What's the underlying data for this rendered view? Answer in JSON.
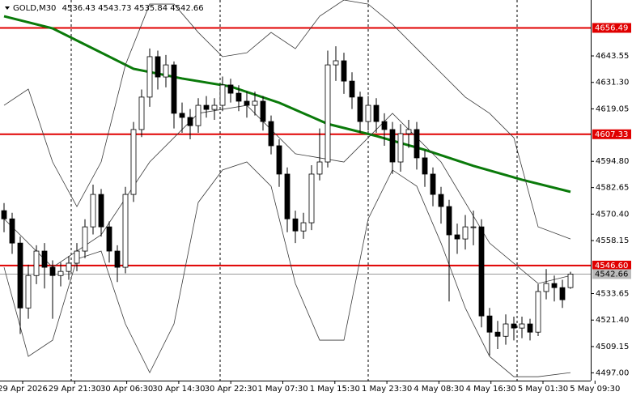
{
  "chart_data": {
    "type": "candlestick",
    "symbol": "GOLD,M30",
    "open": [
      4572.0,
      4568.2,
      4557.0,
      4527.0,
      4542.0,
      4553.3,
      4545.8,
      4542.0,
      4543.9,
      4547.7,
      4553.3,
      4564.5,
      4579.5,
      4564.5,
      4553.3,
      4545.8,
      4579.5,
      4609.5,
      4624.5,
      4643.2,
      4633.8,
      4639.4,
      4617.0,
      4615.1,
      4611.3,
      4620.7,
      4618.8,
      4620.7,
      4630.1,
      4626.3,
      4622.6,
      4620.7,
      4622.6,
      4613.2,
      4602.0,
      4588.9,
      4568.2,
      4562.6,
      4566.4,
      4588.9,
      4594.5,
      4639.4,
      4641.3,
      4631.9,
      4624.5,
      4613.2,
      4620.7,
      4613.2,
      4609.5,
      4594.5,
      4607.6,
      4609.5,
      4596.4,
      4588.9,
      4579.5,
      4573.9,
      4560.8,
      4558.9,
      4564.5,
      4564.5,
      4523.3,
      4515.8,
      4513.9,
      4519.6,
      4517.7,
      4519.6,
      4515.8,
      4534.6,
      4538.3,
      4536.4,
      4536.43
    ],
    "high": [
      4575.5,
      4571.0,
      4560.0,
      4547.0,
      4556.0,
      4557.0,
      4549.0,
      4548.0,
      4551.0,
      4557.0,
      4568.0,
      4584.0,
      4582.0,
      4567.0,
      4556.0,
      4583.0,
      4613.0,
      4628.0,
      4647.0,
      4646.0,
      4644.0,
      4641.0,
      4622.0,
      4619.0,
      4624.0,
      4625.0,
      4624.0,
      4634.0,
      4633.0,
      4630.0,
      4627.0,
      4627.0,
      4625.0,
      4616.0,
      4605.0,
      4592.0,
      4572.0,
      4571.0,
      4593.0,
      4610.0,
      4646.0,
      4648.0,
      4645.0,
      4636.0,
      4627.0,
      4625.0,
      4624.0,
      4617.0,
      4613.0,
      4612.0,
      4614.0,
      4613.0,
      4600.0,
      4592.0,
      4583.0,
      4577.0,
      4566.0,
      4570.0,
      4572.0,
      4568.0,
      4527.0,
      4521.0,
      4524.0,
      4523.0,
      4523.0,
      4522.0,
      4538.0,
      4545.0,
      4542.0,
      4540.0,
      4543.73
    ],
    "low": [
      4562.0,
      4552.0,
      4515.0,
      4522.0,
      4538.0,
      4536.0,
      4522.0,
      4537.0,
      4540.0,
      4544.0,
      4550.0,
      4561.0,
      4560.0,
      4548.0,
      4539.0,
      4543.0,
      4576.0,
      4606.0,
      4620.0,
      4628.0,
      4629.0,
      4610.0,
      4608.0,
      4605.0,
      4608.0,
      4615.0,
      4614.0,
      4618.0,
      4622.0,
      4618.0,
      4615.0,
      4616.0,
      4609.0,
      4598.0,
      4583.0,
      4562.0,
      4557.0,
      4559.0,
      4563.0,
      4586.0,
      4592.0,
      4632.0,
      4626.0,
      4619.0,
      4608.0,
      4609.0,
      4608.0,
      4602.0,
      4589.0,
      4590.0,
      4601.0,
      4591.0,
      4583.0,
      4574.0,
      4566.0,
      4530.0,
      4552.0,
      4554.0,
      4556.0,
      4518.0,
      4505.0,
      4508.0,
      4510.0,
      4512.0,
      4513.0,
      4512.0,
      4514.0,
      4531.0,
      4530.0,
      4527.0,
      4535.84
    ],
    "close": [
      4568.2,
      4557.0,
      4527.0,
      4542.0,
      4553.3,
      4545.8,
      4542.0,
      4543.9,
      4547.7,
      4553.3,
      4564.5,
      4579.5,
      4564.5,
      4553.3,
      4545.8,
      4579.5,
      4609.5,
      4624.5,
      4643.2,
      4633.8,
      4639.4,
      4617.0,
      4615.1,
      4611.3,
      4620.7,
      4618.8,
      4620.7,
      4630.1,
      4626.3,
      4622.6,
      4620.7,
      4622.6,
      4613.2,
      4602.0,
      4588.9,
      4568.2,
      4562.6,
      4566.4,
      4588.9,
      4594.5,
      4639.4,
      4641.3,
      4631.9,
      4624.5,
      4613.2,
      4620.7,
      4613.2,
      4609.5,
      4594.5,
      4607.6,
      4609.5,
      4596.4,
      4588.9,
      4579.5,
      4573.9,
      4560.8,
      4558.9,
      4564.5,
      4564.5,
      4523.3,
      4515.8,
      4513.9,
      4519.6,
      4517.7,
      4519.6,
      4515.8,
      4534.6,
      4538.3,
      4536.4,
      4530.8,
      4542.66
    ],
    "lines": [
      {
        "color": "#0a7a0a",
        "width": 3,
        "x": [
          0,
          6,
          10,
          16,
          22,
          28,
          34,
          40,
          46,
          52,
          58,
          64,
          70
        ],
        "values": [
          4661.9,
          4656.3,
          4648.8,
          4637.6,
          4633.1,
          4629.4,
          4621.9,
          4612.1,
          4606.5,
          4600.1,
          4592.7,
          4586.3,
          4580.7
        ]
      },
      {
        "color": "#3a3a3a",
        "width": 0.8,
        "x": [
          0,
          3,
          6,
          9,
          12,
          15,
          18,
          21,
          24,
          27,
          30,
          33,
          36,
          39,
          42,
          45,
          48,
          51,
          54,
          57,
          60,
          63,
          66,
          70
        ],
        "values": [
          4620.7,
          4628.2,
          4594.5,
          4573.9,
          4594.5,
          4639.4,
          4667.5,
          4667.5,
          4654.4,
          4643.2,
          4645.0,
          4654.4,
          4646.9,
          4661.9,
          4669.4,
          4667.5,
          4658.2,
          4646.9,
          4635.7,
          4624.5,
          4617.0,
          4605.7,
          4564.5,
          4558.9
        ]
      },
      {
        "color": "#3a3a3a",
        "width": 0.8,
        "x": [
          0,
          6,
          12,
          18,
          24,
          30,
          36,
          42,
          48,
          54,
          60,
          66,
          70
        ],
        "values": [
          4568.2,
          4545.8,
          4560.8,
          4594.5,
          4617.0,
          4620.7,
          4598.3,
          4594.5,
          4617.0,
          4594.5,
          4557.0,
          4538.3,
          4542.0
        ]
      },
      {
        "color": "#3a3a3a",
        "width": 0.8,
        "x": [
          0,
          3,
          6,
          9,
          12,
          15,
          18,
          21,
          24,
          27,
          30,
          33,
          36,
          39,
          42,
          45,
          48,
          51,
          54,
          57,
          60,
          63,
          66,
          70
        ],
        "values": [
          4545.8,
          4504.6,
          4512.1,
          4549.6,
          4553.3,
          4519.6,
          4497.1,
          4519.6,
          4575.8,
          4590.8,
          4594.5,
          4583.3,
          4538.3,
          4512.1,
          4512.1,
          4568.2,
          4590.8,
          4583.3,
          4557.0,
          4527.0,
          4504.6,
          4495.2,
          4495.2,
          4497.1
        ]
      }
    ],
    "levels": [
      4656.49,
      4607.33,
      {
        "value": 4546.6,
        "label": "4546.60"
      }
    ],
    "level_color": "#e00000",
    "ylim": [
      4493.4,
      4669.4
    ],
    "yticks": [
      4643.55,
      {
        "value": 4631.3,
        "label": "4631.30"
      },
      4619.05,
      {
        "value": 4594.8,
        "label": "4594.80"
      },
      4582.65,
      {
        "value": 4570.4,
        "label": "4570.40"
      },
      4558.15,
      4533.65,
      {
        "value": 4521.4,
        "label": "4521.40"
      },
      4509.15,
      {
        "value": 4497,
        "label": "4497.00"
      }
    ],
    "x_labels": [
      "29 Apr 2026",
      "29 Apr 21:30",
      "30 Apr 06:30",
      "30 Apr 14:30",
      "30 Apr 22:30",
      "1 May 07:30",
      "1 May 15:30",
      "1 May 23:30",
      "4 May 08:30",
      "4 May 16:30",
      "5 May 01:30",
      "5 May 09:30"
    ]
  }
}
